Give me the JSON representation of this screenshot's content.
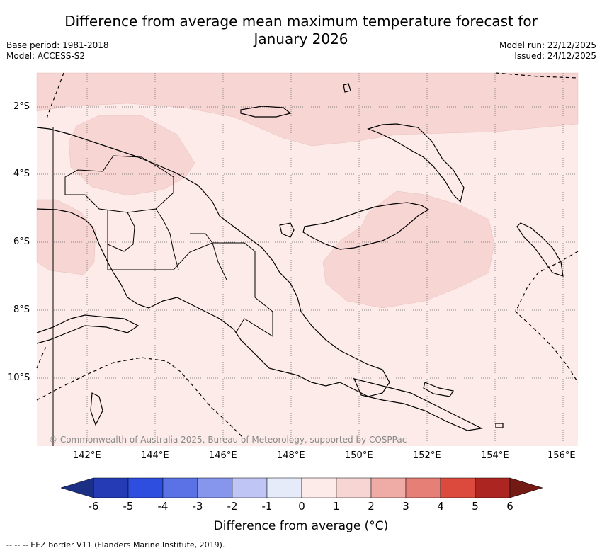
{
  "title_line1": "Difference from average mean maximum temperature forecast for",
  "title_line2": "January 2026",
  "meta_left": {
    "base_period": "Base period: 1981-2018",
    "model": "Model: ACCESS-S2"
  },
  "meta_right": {
    "model_run": "Model run: 22/12/2025",
    "issued": "Issued: 24/12/2025"
  },
  "lat_labels": [
    "2°S",
    "4°S",
    "6°S",
    "8°S",
    "10°S"
  ],
  "lon_labels": [
    "142°E",
    "144°E",
    "146°E",
    "148°E",
    "150°E",
    "152°E",
    "154°E",
    "156°E"
  ],
  "copyright": "© Commonwealth of Australia 2025, Bureau of Meteorology, supported by COSPPac",
  "colorbar": {
    "ticks": [
      "-6",
      "-5",
      "-4",
      "-3",
      "-2",
      "-1",
      "0",
      "1",
      "2",
      "3",
      "4",
      "5",
      "6"
    ],
    "colors": [
      "#253ab5",
      "#2e4ee0",
      "#5a72e6",
      "#8596ec",
      "#bfc6f5",
      "#e6ebfa",
      "#fcebe9",
      "#f6d5d3",
      "#efaba5",
      "#e67f76",
      "#db4a3d",
      "#ad2521"
    ],
    "low_extend_color": "#1b2f85",
    "high_extend_color": "#741a15",
    "label": "Difference from average (°C)"
  },
  "footer": "-- -- -- EEZ border V11 (Flanders Marine Institute, 2019).",
  "map_colors": {
    "base": "#fcebe9",
    "warm": "#f6d5d3",
    "land_outline": "#000000",
    "grid": "#555555"
  }
}
